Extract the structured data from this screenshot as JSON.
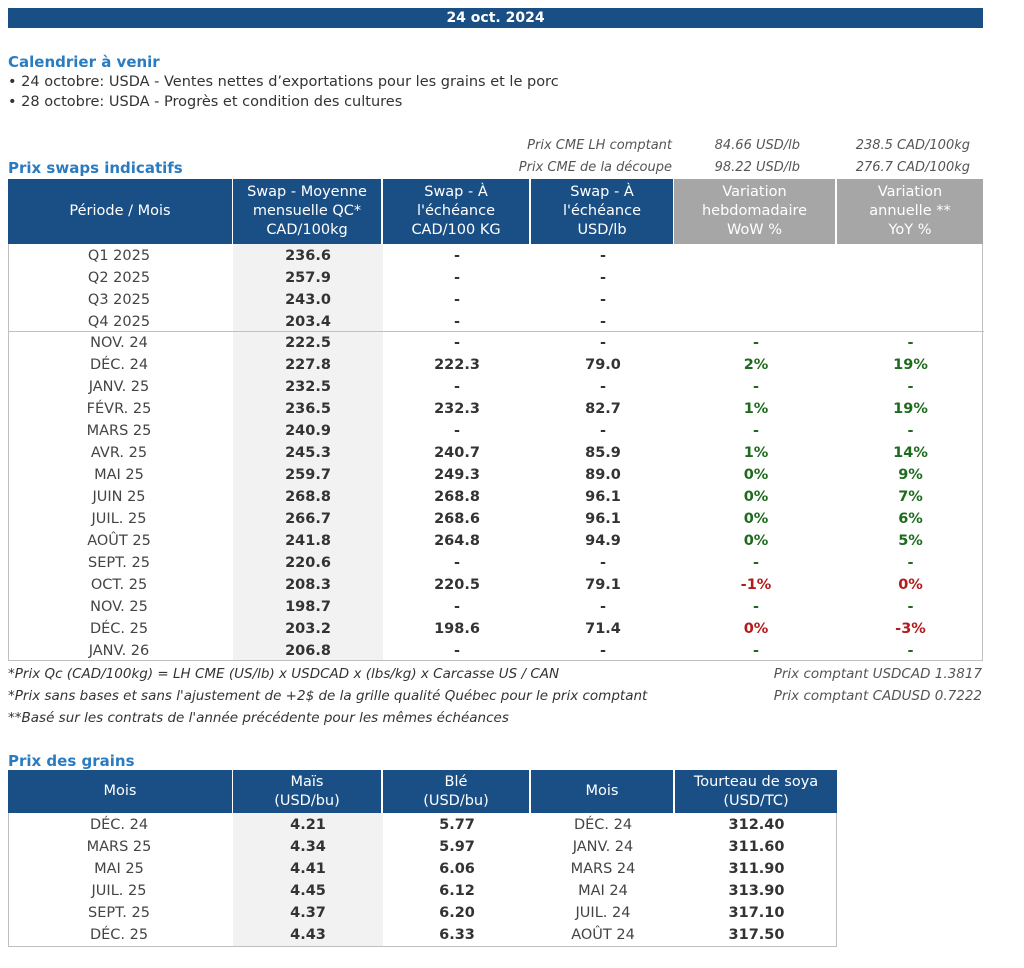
{
  "date": "24 oct. 2024",
  "calendar": {
    "title": "Calendrier à venir",
    "items": [
      "• 24 octobre: USDA - Ventes nettes d’exportations pour les grains et le porc",
      "• 28 octobre: USDA - Progrès et condition des cultures"
    ]
  },
  "reference": {
    "row1": {
      "label": "Prix CME LH comptant",
      "usd": "84.66 USD/lb",
      "cad": "238.5 CAD/100kg"
    },
    "row2": {
      "label": "Prix CME de la découpe",
      "usd": "98.22 USD/lb",
      "cad": "276.7 CAD/100kg"
    }
  },
  "swaps": {
    "title": "Prix swaps indicatifs",
    "headers": {
      "periode": "Période / Mois",
      "swap_l1": "Swap - Moyenne",
      "swap_l2": "mensuelle QC*",
      "swap_l3": "CAD/100kg",
      "ech1_l1": "Swap - À",
      "ech1_l2": "l'échéance",
      "ech1_l3": "CAD/100 KG",
      "ech2_l1": "Swap - À",
      "ech2_l2": "l'échéance",
      "ech2_l3": "USD/lb",
      "wow_l1": "Variation",
      "wow_l2": "hebdomadaire",
      "wow_l3": "WoW %",
      "yoy_l1": "Variation",
      "yoy_l2": "annuelle **",
      "yoy_l3": "YoY %"
    },
    "quarters": [
      {
        "p": "Q1 2025",
        "swap": "236.6",
        "ech1": "-",
        "ech2": "-",
        "wow": "",
        "yoy": ""
      },
      {
        "p": "Q2 2025",
        "swap": "257.9",
        "ech1": "-",
        "ech2": "-",
        "wow": "",
        "yoy": ""
      },
      {
        "p": "Q3 2025",
        "swap": "243.0",
        "ech1": "-",
        "ech2": "-",
        "wow": "",
        "yoy": ""
      },
      {
        "p": "Q4 2025",
        "swap": "203.4",
        "ech1": "-",
        "ech2": "-",
        "wow": "",
        "yoy": ""
      }
    ],
    "months": [
      {
        "p": "NOV. 24",
        "swap": "222.5",
        "ech1": "-",
        "ech2": "-",
        "wow": "-",
        "yoy": "-"
      },
      {
        "p": "DÉC. 24",
        "swap": "227.8",
        "ech1": "222.3",
        "ech2": "79.0",
        "wow": "2%",
        "yoy": "19%"
      },
      {
        "p": "JANV. 25",
        "swap": "232.5",
        "ech1": "-",
        "ech2": "-",
        "wow": "-",
        "yoy": "-"
      },
      {
        "p": "FÉVR. 25",
        "swap": "236.5",
        "ech1": "232.3",
        "ech2": "82.7",
        "wow": "1%",
        "yoy": "19%"
      },
      {
        "p": "MARS 25",
        "swap": "240.9",
        "ech1": "-",
        "ech2": "-",
        "wow": "-",
        "yoy": "-"
      },
      {
        "p": "AVR. 25",
        "swap": "245.3",
        "ech1": "240.7",
        "ech2": "85.9",
        "wow": "1%",
        "yoy": "14%"
      },
      {
        "p": "MAI 25",
        "swap": "259.7",
        "ech1": "249.3",
        "ech2": "89.0",
        "wow": "0%",
        "yoy": "9%"
      },
      {
        "p": "JUIN 25",
        "swap": "268.8",
        "ech1": "268.8",
        "ech2": "96.1",
        "wow": "0%",
        "yoy": "7%"
      },
      {
        "p": "JUIL. 25",
        "swap": "266.7",
        "ech1": "268.6",
        "ech2": "96.1",
        "wow": "0%",
        "yoy": "6%"
      },
      {
        "p": "AOÛT 25",
        "swap": "241.8",
        "ech1": "264.8",
        "ech2": "94.9",
        "wow": "0%",
        "yoy": "5%"
      },
      {
        "p": "SEPT. 25",
        "swap": "220.6",
        "ech1": "-",
        "ech2": "-",
        "wow": "-",
        "yoy": "-"
      },
      {
        "p": "OCT. 25",
        "swap": "208.3",
        "ech1": "220.5",
        "ech2": "79.1",
        "wow": "-1%",
        "yoy": "0%"
      },
      {
        "p": "NOV. 25",
        "swap": "198.7",
        "ech1": "-",
        "ech2": "-",
        "wow": "-",
        "yoy": "-"
      },
      {
        "p": "DÉC. 25",
        "swap": "203.2",
        "ech1": "198.6",
        "ech2": "71.4",
        "wow": "0%",
        "yoy": "-3%"
      },
      {
        "p": "JANV. 26",
        "swap": "206.8",
        "ech1": "-",
        "ech2": "-",
        "wow": "-",
        "yoy": "-"
      }
    ],
    "colors": {
      "wow": [
        "green",
        "green",
        "green",
        "green",
        "green",
        "green",
        "green",
        "green",
        "green",
        "green",
        "green",
        "red",
        "green",
        "red",
        "green"
      ],
      "yoy": [
        "green",
        "green",
        "green",
        "green",
        "green",
        "green",
        "green",
        "green",
        "green",
        "green",
        "green",
        "red",
        "green",
        "red",
        "green"
      ]
    }
  },
  "notes": {
    "n1": "*Prix Qc (CAD/100kg) = LH CME (US/lb) x USDCAD x (lbs/kg) x Carcasse US / CAN",
    "n2": "*Prix sans bases et sans l'ajustement de +2$ de la grille qualité Québec pour le prix comptant",
    "n3": "**Basé sur les contrats de l'année précédente pour les mêmes échéances",
    "fx1": "Prix comptant USDCAD 1.3817",
    "fx2": "Prix comptant CADUSD 0.7222"
  },
  "grains": {
    "title": "Prix des grains",
    "headers": {
      "mois": "Mois",
      "mais_l1": "Maïs",
      "mais_l2": "(USD/bu)",
      "ble_l1": "Blé",
      "ble_l2": "(USD/bu)",
      "mois2": "Mois",
      "soya_l1": "Tourteau de soya",
      "soya_l2": "(USD/TC)"
    },
    "rows": [
      {
        "m1": "DÉC. 24",
        "mais": "4.21",
        "ble": "5.77",
        "m2": "DÉC. 24",
        "soya": "312.40"
      },
      {
        "m1": "MARS 25",
        "mais": "4.34",
        "ble": "5.97",
        "m2": "JANV. 24",
        "soya": "311.60"
      },
      {
        "m1": "MAI 25",
        "mais": "4.41",
        "ble": "6.06",
        "m2": "MARS 24",
        "soya": "311.90"
      },
      {
        "m1": "JUIL. 25",
        "mais": "4.45",
        "ble": "6.12",
        "m2": "MAI 24",
        "soya": "313.90"
      },
      {
        "m1": "SEPT. 25",
        "mais": "4.37",
        "ble": "6.20",
        "m2": "JUIL. 24",
        "soya": "317.10"
      },
      {
        "m1": "DÉC. 25",
        "mais": "4.43",
        "ble": "6.33",
        "m2": "AOÛT 24",
        "soya": "317.50"
      }
    ]
  }
}
